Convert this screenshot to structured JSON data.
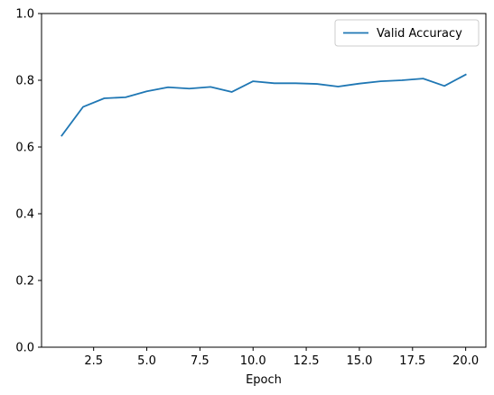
{
  "chart_data": {
    "type": "line",
    "xlabel": "Epoch",
    "ylabel": "",
    "xlim": [
      0.05,
      20.95
    ],
    "ylim": [
      0,
      1
    ],
    "xticks": [
      2.5,
      5.0,
      7.5,
      10.0,
      12.5,
      15.0,
      17.5,
      20.0
    ],
    "xtick_labels": [
      "2.5",
      "5.0",
      "7.5",
      "10.0",
      "12.5",
      "15.0",
      "17.5",
      "20.0"
    ],
    "yticks": [
      0,
      0.2,
      0.4,
      0.6,
      0.8,
      1.0
    ],
    "ytick_labels": [
      "0.0",
      "0.2",
      "0.4",
      "0.6",
      "0.8",
      "1.0"
    ],
    "grid": false,
    "legend_position": "top-right",
    "series": [
      {
        "name": "Valid Accuracy",
        "color": "#1f77b4",
        "x": [
          1,
          2,
          3,
          4,
          5,
          6,
          7,
          8,
          9,
          10,
          11,
          12,
          13,
          14,
          15,
          16,
          17,
          18,
          19,
          20
        ],
        "y": [
          0.634,
          0.72,
          0.746,
          0.749,
          0.767,
          0.779,
          0.775,
          0.78,
          0.765,
          0.797,
          0.791,
          0.791,
          0.789,
          0.781,
          0.79,
          0.797,
          0.8,
          0.805,
          0.783,
          0.817
        ]
      }
    ]
  }
}
